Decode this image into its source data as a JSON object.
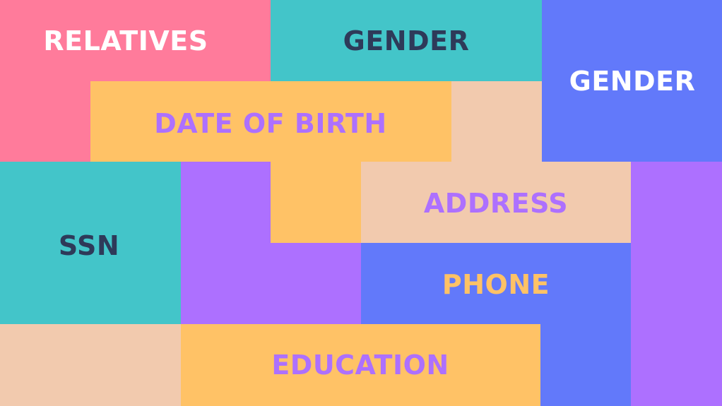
{
  "colors": {
    "pink": "#FF7B9B",
    "teal": "#43C5C9",
    "blue": "#6279FA",
    "yellow": "#FFC266",
    "peach": "#F2CAAE",
    "purple": "#AD70FF",
    "dark_text": "#2E3A59",
    "white_text": "#FFFFFF"
  },
  "labels": {
    "relatives": "RELATIVES",
    "gender_top": "GENDER",
    "gender_right": "GENDER",
    "date_of_birth": "DATE OF BIRTH",
    "address": "ADDRESS",
    "ssn": "SSN",
    "phone": "PHONE",
    "education": "EDUCATION"
  }
}
